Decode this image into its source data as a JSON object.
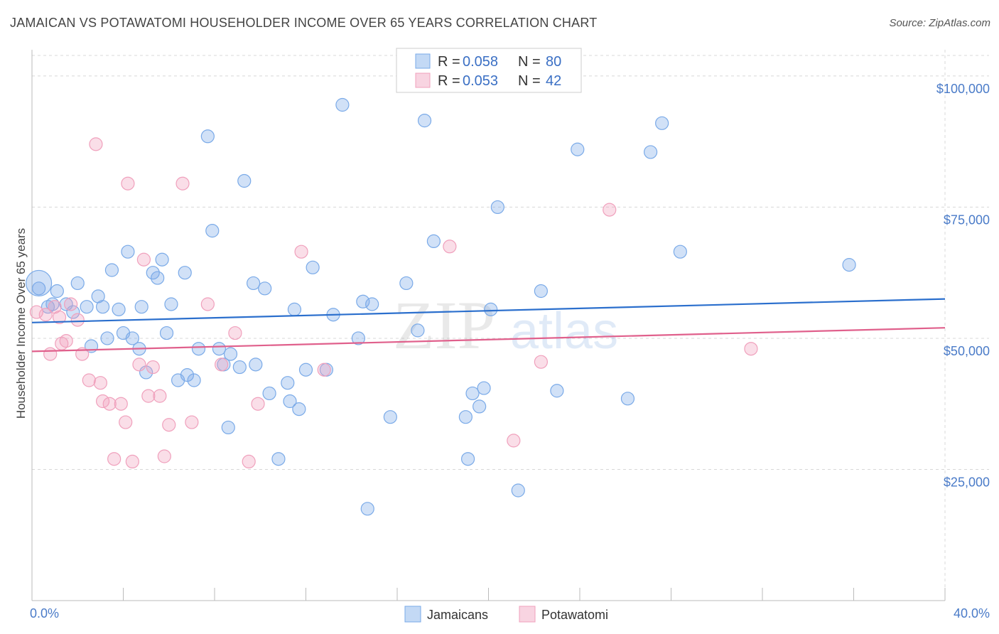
{
  "title": "JAMAICAN VS POTAWATOMI HOUSEHOLDER INCOME OVER 65 YEARS CORRELATION CHART",
  "source": "Source: ZipAtlas.com",
  "watermark": {
    "zip": "ZIP",
    "atlas": "atlas"
  },
  "chart_data": {
    "type": "scatter",
    "xlabel": "",
    "ylabel": "Householder Income Over 65 years",
    "xlim": [
      0,
      40
    ],
    "ylim": [
      0,
      105000
    ],
    "x_tick_labels": [
      {
        "value": 0,
        "label": "0.0%"
      },
      {
        "value": 40,
        "label": "40.0%"
      }
    ],
    "y_ticks": [
      {
        "value": 25000,
        "label": "$25,000"
      },
      {
        "value": 50000,
        "label": "$50,000"
      },
      {
        "value": 75000,
        "label": "$75,000"
      },
      {
        "value": 100000,
        "label": "$100,000"
      }
    ],
    "grid": true,
    "legend_position": "top-center",
    "stats": [
      {
        "r_label": "R =",
        "r_value": "0.058",
        "n_label": "N =",
        "n_value": "80"
      },
      {
        "r_label": "R =",
        "r_value": "0.053",
        "n_label": "N =",
        "n_value": "42"
      }
    ],
    "series": [
      {
        "name": "Jamaicans",
        "color": "#7aaae8",
        "fill": "rgba(122,170,232,0.35)",
        "line_color": "#2b6fcd",
        "trend": [
          [
            0,
            53000
          ],
          [
            40,
            57500
          ]
        ],
        "points": [
          [
            0.3,
            59500
          ],
          [
            0.7,
            56000
          ],
          [
            0.9,
            56500
          ],
          [
            1.1,
            59000
          ],
          [
            1.5,
            56500
          ],
          [
            1.8,
            55000
          ],
          [
            2.0,
            60500
          ],
          [
            2.4,
            56000
          ],
          [
            2.6,
            48500
          ],
          [
            2.9,
            58000
          ],
          [
            3.1,
            56000
          ],
          [
            3.3,
            50000
          ],
          [
            3.5,
            63000
          ],
          [
            3.8,
            55500
          ],
          [
            4.0,
            51000
          ],
          [
            4.2,
            66500
          ],
          [
            4.4,
            50000
          ],
          [
            4.7,
            48000
          ],
          [
            4.8,
            56000
          ],
          [
            5.0,
            43500
          ],
          [
            5.3,
            62500
          ],
          [
            5.5,
            61500
          ],
          [
            5.7,
            65000
          ],
          [
            5.9,
            51000
          ],
          [
            6.1,
            56500
          ],
          [
            6.4,
            42000
          ],
          [
            6.7,
            62500
          ],
          [
            6.8,
            43000
          ],
          [
            7.1,
            42000
          ],
          [
            7.3,
            48000
          ],
          [
            7.7,
            88500
          ],
          [
            7.9,
            70500
          ],
          [
            8.2,
            48000
          ],
          [
            8.4,
            45000
          ],
          [
            8.7,
            47000
          ],
          [
            8.6,
            33000
          ],
          [
            9.1,
            44500
          ],
          [
            9.3,
            80000
          ],
          [
            9.7,
            60500
          ],
          [
            9.8,
            45000
          ],
          [
            10.2,
            59500
          ],
          [
            10.4,
            39500
          ],
          [
            10.8,
            27000
          ],
          [
            11.2,
            41500
          ],
          [
            11.3,
            38000
          ],
          [
            11.5,
            55500
          ],
          [
            11.7,
            36500
          ],
          [
            12.0,
            44000
          ],
          [
            12.3,
            63500
          ],
          [
            12.9,
            44000
          ],
          [
            13.2,
            54500
          ],
          [
            13.6,
            94500
          ],
          [
            14.3,
            50000
          ],
          [
            14.5,
            57000
          ],
          [
            14.9,
            56500
          ],
          [
            14.7,
            17500
          ],
          [
            15.7,
            35000
          ],
          [
            16.4,
            60500
          ],
          [
            16.9,
            51500
          ],
          [
            17.2,
            91500
          ],
          [
            17.6,
            68500
          ],
          [
            19.0,
            35000
          ],
          [
            19.1,
            27000
          ],
          [
            19.3,
            39500
          ],
          [
            19.6,
            37000
          ],
          [
            19.8,
            40500
          ],
          [
            20.1,
            55500
          ],
          [
            20.4,
            75000
          ],
          [
            21.3,
            21000
          ],
          [
            22.3,
            59000
          ],
          [
            23.0,
            40000
          ],
          [
            23.9,
            86000
          ],
          [
            26.1,
            38500
          ],
          [
            27.1,
            85500
          ],
          [
            27.6,
            91000
          ],
          [
            28.4,
            66500
          ],
          [
            35.8,
            64000
          ]
        ]
      },
      {
        "name": "Potawatomi",
        "color": "#f0a0bc",
        "fill": "rgba(240,160,188,0.35)",
        "line_color": "#e0608c",
        "trend": [
          [
            0,
            47500
          ],
          [
            40,
            52000
          ]
        ],
        "points": [
          [
            0.2,
            55000
          ],
          [
            0.6,
            54500
          ],
          [
            0.8,
            47000
          ],
          [
            1.0,
            56000
          ],
          [
            1.2,
            54000
          ],
          [
            1.3,
            49000
          ],
          [
            1.5,
            49500
          ],
          [
            1.7,
            56500
          ],
          [
            2.0,
            53500
          ],
          [
            2.2,
            47000
          ],
          [
            2.5,
            42000
          ],
          [
            2.8,
            87000
          ],
          [
            3.0,
            41500
          ],
          [
            3.1,
            38000
          ],
          [
            3.4,
            37500
          ],
          [
            3.6,
            27000
          ],
          [
            3.9,
            37500
          ],
          [
            4.1,
            34000
          ],
          [
            4.2,
            79500
          ],
          [
            4.4,
            26500
          ],
          [
            4.7,
            45000
          ],
          [
            4.9,
            65000
          ],
          [
            5.1,
            39000
          ],
          [
            5.3,
            44500
          ],
          [
            5.6,
            39000
          ],
          [
            5.8,
            27500
          ],
          [
            6.0,
            33500
          ],
          [
            6.6,
            79500
          ],
          [
            7.0,
            34000
          ],
          [
            7.7,
            56500
          ],
          [
            8.3,
            45000
          ],
          [
            8.9,
            51000
          ],
          [
            9.5,
            26500
          ],
          [
            9.9,
            37500
          ],
          [
            11.8,
            66500
          ],
          [
            12.8,
            44000
          ],
          [
            18.3,
            67500
          ],
          [
            21.1,
            30500
          ],
          [
            22.3,
            45500
          ],
          [
            25.3,
            74500
          ],
          [
            31.5,
            48000
          ]
        ]
      }
    ]
  }
}
